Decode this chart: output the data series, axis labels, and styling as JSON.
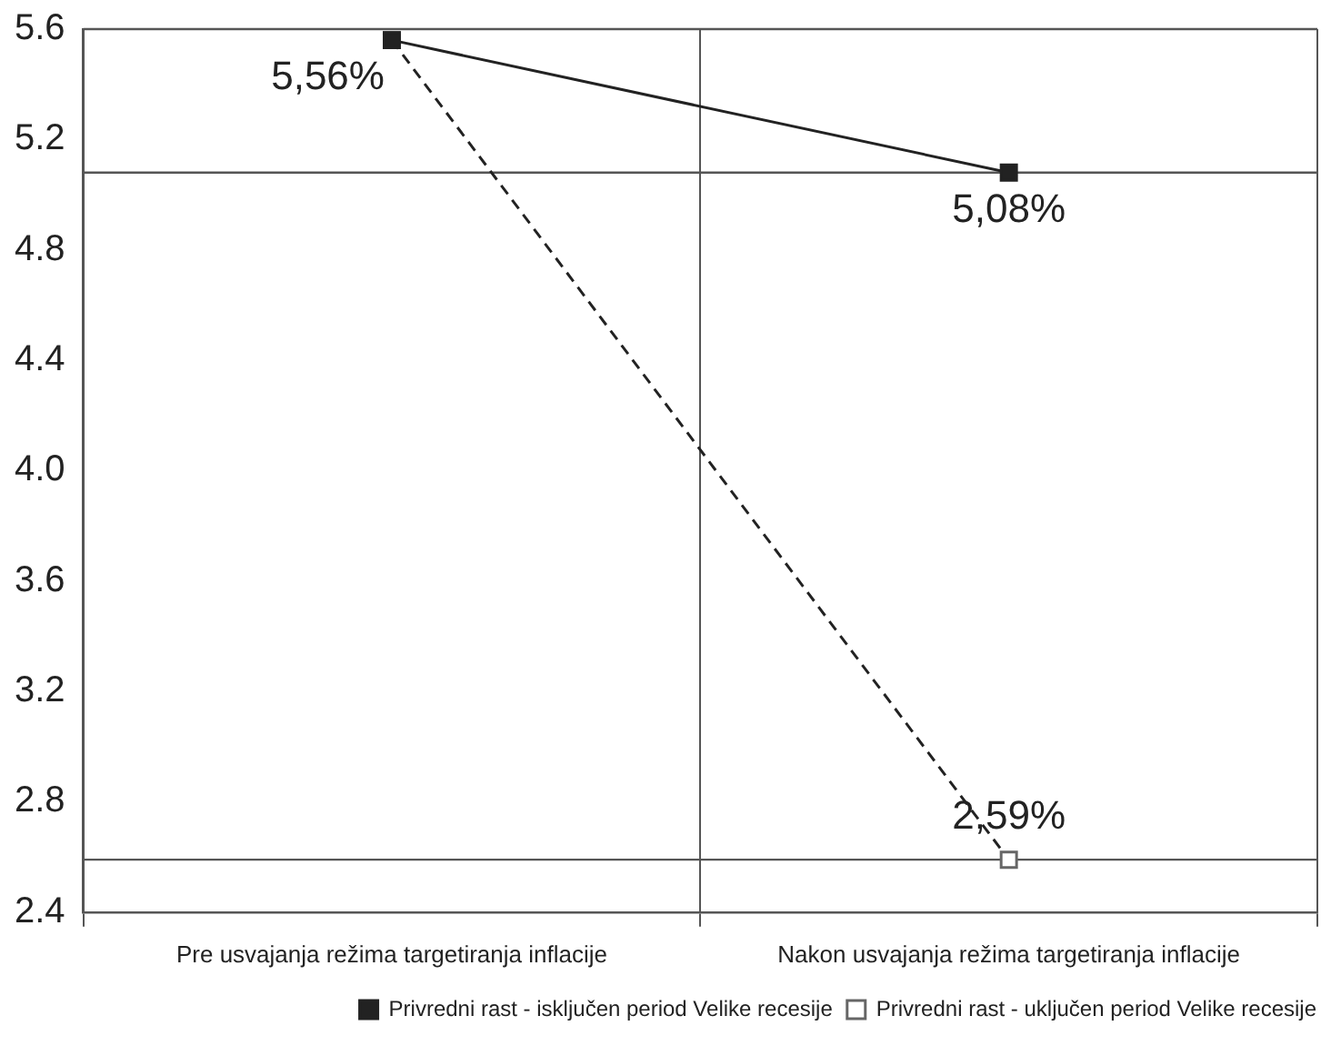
{
  "chart_data": {
    "type": "line",
    "categories": [
      "Pre usvajanja režima targetiranja inflacije",
      "Nakon usvajanja režima targetiranja inflacije"
    ],
    "series": [
      {
        "name": "Privredni rast - isključen period Velike recesije",
        "color": "#222222",
        "line_style": "solid",
        "values": [
          5.56,
          5.08
        ],
        "value_labels": [
          "5,56%",
          "5,08%"
        ]
      },
      {
        "name": "Privredni rast - uključen period Velike recesije",
        "color": "#222222",
        "line_style": "dashed",
        "values": [
          5.56,
          2.59
        ],
        "value_labels": [
          null,
          "2,59%"
        ]
      }
    ],
    "ylim": [
      2.4,
      5.6
    ],
    "yticks": [
      2.4,
      2.8,
      3.2,
      3.6,
      {
        "value": 4,
        "label": "4.0"
      },
      4.4,
      4.8,
      5.2,
      5.6
    ],
    "ref_lines": [
      {
        "axis": "y",
        "value": 5.08,
        "color": "#555555"
      },
      {
        "axis": "y",
        "value": 2.59,
        "color": "#555555"
      }
    ],
    "grid": "x",
    "legend": "bottom right",
    "marker": "square"
  }
}
